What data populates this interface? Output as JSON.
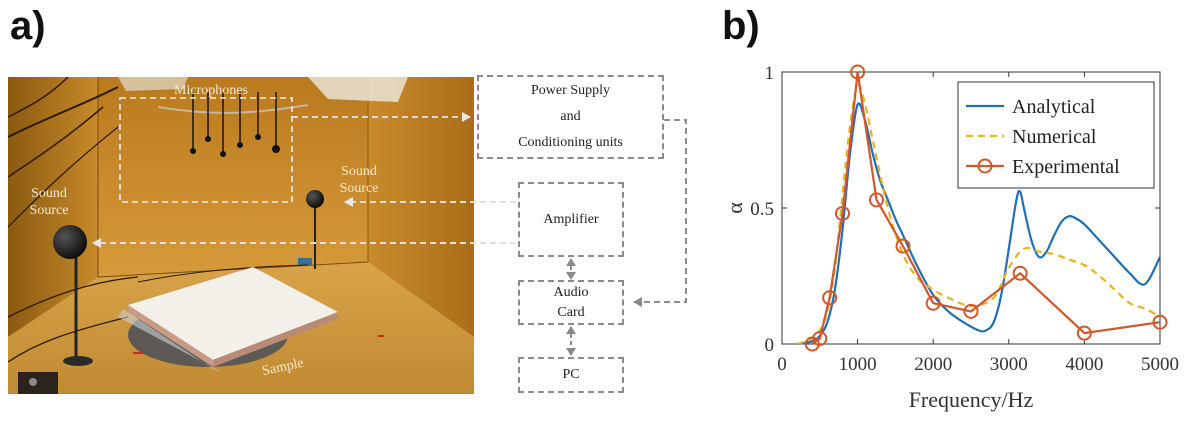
{
  "panels": {
    "a": "a)",
    "b": "b)"
  },
  "photo": {
    "labels": {
      "microphones": "Microphones",
      "sound_source_left_1": "Sound",
      "sound_source_left_2": "Source",
      "sound_source_right_1": "Sound",
      "sound_source_right_2": "Source",
      "sample": "Sample"
    }
  },
  "diagram": {
    "power_supply": [
      "Power Supply",
      "and",
      "Conditioning units"
    ],
    "amplifier": "Amplifier",
    "audio_card": [
      "Audio",
      "Card"
    ],
    "pc": "PC"
  },
  "colors": {
    "analytical": "#1f6fb5",
    "numerical": "#e6b422",
    "experimental": "#d2572a"
  },
  "chart_data": {
    "type": "line",
    "xlabel": "Frequency/Hz",
    "ylabel": "α",
    "xlim": [
      0,
      5000
    ],
    "ylim": [
      0,
      1
    ],
    "xticks": [
      "0",
      "1000",
      "2000",
      "3000",
      "4000",
      "5000"
    ],
    "yticks": [
      "0",
      "0.5",
      "1"
    ],
    "legend_position": "top-right",
    "grid": false,
    "series": [
      {
        "name": "Analytical",
        "style": "solid",
        "x": [
          200,
          400,
          500,
          600,
          700,
          800,
          900,
          1000,
          1100,
          1200,
          1300,
          1400,
          1500,
          1600,
          1800,
          2000,
          2200,
          2400,
          2600,
          2700,
          2800,
          2900,
          3000,
          3100,
          3150,
          3200,
          3300,
          3400,
          3500,
          3600,
          3700,
          3800,
          3900,
          4000,
          4200,
          4400,
          4600,
          4800,
          5000
        ],
        "y": [
          0.0,
          0.01,
          0.03,
          0.08,
          0.2,
          0.42,
          0.7,
          0.88,
          0.82,
          0.7,
          0.6,
          0.53,
          0.46,
          0.4,
          0.28,
          0.18,
          0.12,
          0.08,
          0.05,
          0.05,
          0.08,
          0.18,
          0.35,
          0.53,
          0.56,
          0.5,
          0.38,
          0.32,
          0.34,
          0.4,
          0.45,
          0.47,
          0.46,
          0.44,
          0.38,
          0.32,
          0.26,
          0.22,
          0.32
        ]
      },
      {
        "name": "Numerical",
        "style": "dashed",
        "x": [
          200,
          400,
          500,
          600,
          700,
          800,
          900,
          1000,
          1100,
          1200,
          1400,
          1600,
          1800,
          2000,
          2200,
          2500,
          2800,
          3000,
          3200,
          3400,
          3600,
          3800,
          4000,
          4200,
          4400,
          4600,
          4800,
          5000
        ],
        "y": [
          0.0,
          0.02,
          0.05,
          0.12,
          0.28,
          0.55,
          0.8,
          0.95,
          0.88,
          0.75,
          0.5,
          0.33,
          0.24,
          0.2,
          0.17,
          0.14,
          0.17,
          0.28,
          0.35,
          0.34,
          0.33,
          0.31,
          0.29,
          0.25,
          0.2,
          0.15,
          0.13,
          0.1
        ]
      },
      {
        "name": "Experimental",
        "style": "solid-circles",
        "x": [
          400,
          500,
          630,
          800,
          1000,
          1250,
          1600,
          2000,
          2500,
          3150,
          4000,
          5000
        ],
        "y": [
          0.0,
          0.02,
          0.17,
          0.48,
          1.0,
          0.53,
          0.36,
          0.15,
          0.12,
          0.26,
          0.04,
          0.08
        ]
      }
    ]
  }
}
